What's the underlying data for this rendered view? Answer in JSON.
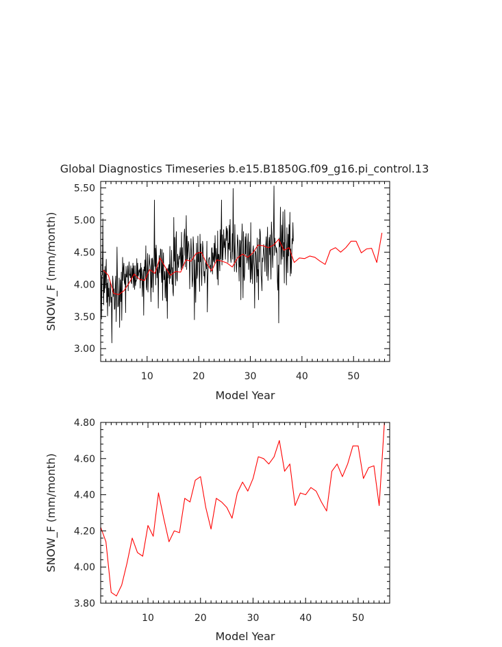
{
  "title": "Global Diagnostics Timeseries b.e15.B1850G.f09_g16.pi_control.13",
  "chart_data": [
    {
      "type": "line",
      "xlabel": "Model Year",
      "ylabel": "SNOW_F (mm/month)",
      "xlim": [
        1,
        57
      ],
      "ylim": [
        2.8,
        5.6
      ],
      "xticks": [
        10,
        20,
        30,
        40,
        50
      ],
      "yticks": [
        3.0,
        3.5,
        4.0,
        4.5,
        5.0,
        5.5
      ],
      "ytick_labels": [
        "3.00",
        "3.50",
        "4.00",
        "4.50",
        "5.00",
        "5.50"
      ],
      "series": [
        {
          "color": "#000000",
          "resolution": "monthly",
          "x_start": 1.0,
          "x_step": 0.08333,
          "values": [
            4.67,
            4.21,
            3.46,
            4.14,
            4.15,
            5.02,
            3.95,
            3.68,
            4.22,
            3.87,
            4.28,
            3.94,
            4.16,
            4.39,
            3.72,
            4.02,
            3.51,
            4.08,
            3.81,
            3.94,
            3.66,
            3.77,
            4.05,
            3.91,
            3.72,
            3.8,
            3.09,
            3.83,
            4.13,
            4.01,
            3.81,
            3.93,
            3.61,
            3.62,
            4.01,
            4.13,
            3.42,
            3.92,
            4.58,
            4.06,
            3.65,
            3.66,
            3.77,
            4.1,
            3.33,
            3.85,
            4.07,
            3.73,
            4.19,
            3.44,
            3.92,
            4.42,
            4.06,
            4.26,
            4.33,
            4.03,
            4.0,
            4.16,
            3.56,
            4.28,
            4.12,
            4.11,
            4.17,
            4.29,
            3.9,
            4.16,
            4.35,
            4.14,
            4.16,
            4.1,
            4.29,
            4.03,
            4.01,
            4.25,
            4.11,
            4.33,
            3.95,
            4.29,
            4.06,
            3.92,
            4.29,
            3.98,
            4.06,
            4.05,
            4.4,
            4.08,
            4.33,
            4.12,
            4.14,
            4.22,
            4.19,
            4.24,
            3.94,
            4.33,
            4.06,
            4.26,
            4.13,
            3.81,
            4.04,
            4.23,
            3.52,
            4.27,
            4.21,
            4.38,
            4.09,
            4.6,
            3.96,
            3.91,
            4.23,
            4.48,
            3.88,
            4.17,
            4.31,
            4.46,
            4.32,
            4.27,
            4.07,
            3.73,
            4.4,
            3.95,
            4.41,
            4.37,
            3.88,
            4.23,
            4.35,
            5.31,
            4.28,
            4.56,
            3.99,
            4.61,
            4.43,
            4.1,
            4.21,
            4.27,
            3.63,
            4.21,
            4.45,
            4.18,
            4.29,
            4.55,
            4.54,
            4.19,
            4.03,
            4.54,
            3.75,
            4.33,
            4.49,
            4.07,
            4.08,
            4.2,
            3.79,
            3.98,
            4.25,
            3.74,
            4.24,
            3.47,
            4.25,
            4.1,
            4.28,
            4.31,
            4.01,
            4.59,
            4.09,
            4.19,
            4.25,
            4.53,
            4.0,
            4.26,
            3.88,
            3.82,
            5.04,
            4.36,
            4.73,
            4.34,
            3.98,
            4.69,
            4.82,
            4.09,
            4.05,
            4.47,
            4.33,
            4.26,
            4.44,
            4.39,
            4.47,
            4.57,
            4.38,
            4.23,
            4.81,
            4.26,
            4.57,
            4.25,
            4.44,
            4.46,
            4.76,
            4.86,
            4.64,
            4.27,
            4.69,
            5.07,
            4.23,
            4.75,
            4.39,
            4.52,
            4.67,
            4.62,
            4.48,
            3.93,
            4.41,
            4.41,
            4.71,
            4.51,
            4.19,
            3.96,
            4.08,
            4.74,
            4.61,
            4.23,
            3.45,
            4.38,
            4.12,
            3.72,
            4.23,
            4.64,
            4.09,
            4.15,
            4.75,
            4.35,
            4.5,
            4.18,
            3.89,
            4.78,
            4.35,
            4.63,
            4.21,
            3.98,
            4.36,
            4.67,
            4.57,
            4.37,
            4.13,
            4.2,
            4.02,
            4.18,
            4.34,
            4.34,
            4.24,
            4.67,
            3.57,
            4.05,
            4.24,
            4.38,
            4.41,
            4.42,
            4.27,
            4.3,
            4.19,
            4.25,
            4.56,
            4.57,
            4.16,
            4.49,
            4.39,
            4.35,
            4.64,
            4.33,
            4.76,
            4.45,
            4.37,
            4.56,
            4.3,
            4.08,
            4.83,
            3.99,
            4.47,
            4.46,
            4.35,
            4.21,
            4.85,
            4.39,
            4.77,
            5.31,
            4.3,
            4.77,
            4.38,
            4.55,
            4.85,
            4.57,
            4.63,
            4.71,
            4.39,
            4.58,
            4.9,
            4.68,
            4.87,
            4.82,
            4.34,
            4.64,
            4.55,
            4.92,
            4.53,
            5.01,
            4.43,
            4.34,
            4.5,
            4.51,
            4.79,
            4.39,
            5.49,
            4.67,
            4.53,
            4.2,
            4.93,
            4.41,
            4.36,
            4.31,
            4.19,
            4.45,
            4.77,
            4.68,
            4.55,
            4.3,
            4.05,
            4.69,
            4.27,
            4.68,
            3.76,
            4.63,
            4.69,
            4.94,
            4.36,
            3.79,
            4.82,
            4.13,
            4.06,
            4.21,
            4.74,
            4.47,
            4.79,
            4.54,
            4.33,
            4.39,
            4.67,
            4.79,
            4.23,
            4.41,
            4.66,
            4.4,
            4.03,
            4.96,
            4.08,
            4.25,
            4.46,
            4.01,
            4.54,
            4.6,
            4.35,
            4.25,
            3.63,
            4.52,
            4.51,
            4.46,
            4.26,
            4.03,
            4.72,
            4.13,
            4.23,
            3.76,
            4.7,
            4.35,
            4.86,
            4.82,
            4.66,
            4.14,
            4.06,
            3.9,
            4.41,
            4.35,
            4.46,
            4.62,
            4.53,
            4.43,
            4.2,
            4.58,
            4.62,
            4.74,
            4.13,
            4.62,
            4.89,
            4.06,
            4.22,
            4.59,
            4.73,
            4.46,
            4.77,
            4.36,
            4.08,
            4.97,
            4.79,
            4.54,
            4.26,
            4.57,
            4.87,
            5.53,
            4.45,
            4.72,
            4.6,
            4.59,
            4.49,
            4.57,
            4.5,
            4.04,
            3.91,
            4.3,
            3.4,
            4.72,
            4.58,
            4.61,
            5.2,
            4.31,
            4.49,
            4.92,
            4.39,
            4.81,
            5.13,
            4.43,
            4.65,
            4.02,
            5.16,
            4.69,
            4.62,
            4.4,
            3.99,
            4.88,
            4.46,
            4.18,
            4.78,
            4.44,
            4.93,
            4.54,
            5.12,
            4.13,
            4.55,
            4.17,
            4.36,
            4.71,
            4.63,
            4.96,
            4.67
          ]
        },
        {
          "color": "#ff0000",
          "x_start": 1.5,
          "x_step": 1.0,
          "values": [
            4.22,
            4.14,
            3.86,
            3.84,
            3.9,
            4.02,
            4.16,
            4.08,
            4.06,
            4.23,
            4.17,
            4.41,
            4.27,
            4.14,
            4.2,
            4.19,
            4.38,
            4.36,
            4.48,
            4.5,
            4.33,
            4.21,
            4.38,
            4.36,
            4.33,
            4.27,
            4.41,
            4.47,
            4.42,
            4.49,
            4.61,
            4.6,
            4.57,
            4.61,
            4.7,
            4.53,
            4.57,
            4.34,
            4.41,
            4.4,
            4.44,
            4.42,
            4.36,
            4.31,
            4.53,
            4.57,
            4.5,
            4.57,
            4.67,
            4.67,
            4.49,
            4.55,
            4.56,
            4.34,
            4.8
          ]
        }
      ]
    },
    {
      "type": "line",
      "xlabel": "Model Year",
      "ylabel": "SNOW_F (mm/month)",
      "xlim": [
        1,
        56
      ],
      "ylim": [
        3.8,
        4.8
      ],
      "xticks": [
        10,
        20,
        30,
        40,
        50
      ],
      "yticks": [
        3.8,
        4.0,
        4.2,
        4.4,
        4.6,
        4.8
      ],
      "ytick_labels": [
        "3.80",
        "4.00",
        "4.20",
        "4.40",
        "4.60",
        "4.80"
      ],
      "series": [
        {
          "color": "#ff0000",
          "x_start": 1.0,
          "x_step": 1.0,
          "values": [
            4.22,
            4.14,
            3.86,
            3.84,
            3.9,
            4.02,
            4.16,
            4.08,
            4.06,
            4.23,
            4.17,
            4.41,
            4.27,
            4.14,
            4.2,
            4.19,
            4.38,
            4.36,
            4.48,
            4.5,
            4.33,
            4.21,
            4.38,
            4.36,
            4.33,
            4.27,
            4.41,
            4.47,
            4.42,
            4.49,
            4.61,
            4.6,
            4.57,
            4.61,
            4.7,
            4.53,
            4.57,
            4.34,
            4.41,
            4.4,
            4.44,
            4.42,
            4.36,
            4.31,
            4.53,
            4.57,
            4.5,
            4.57,
            4.67,
            4.67,
            4.49,
            4.55,
            4.56,
            4.34,
            4.8
          ]
        }
      ]
    }
  ]
}
